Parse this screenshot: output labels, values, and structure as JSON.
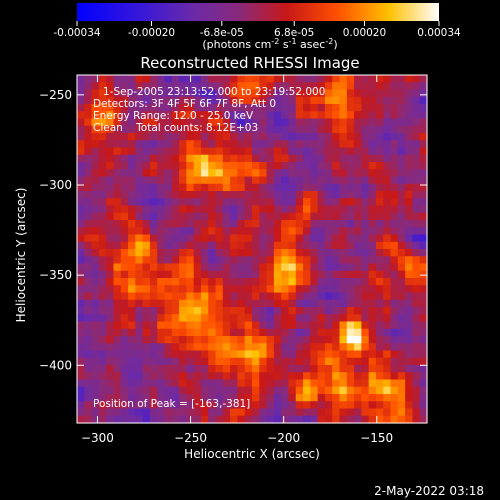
{
  "chart_data": {
    "type": "heatmap",
    "title": "Reconstructed RHESSI Image",
    "xlabel": "Heliocentric X (arcsec)",
    "ylabel": "Heliocentric Y (arcsec)",
    "xlim": [
      -311,
      -123
    ],
    "ylim": [
      -432,
      -239
    ],
    "xticks": [
      -300,
      -250,
      -200,
      -150
    ],
    "yticks": [
      -250,
      -300,
      -350,
      -400
    ],
    "colorbar": {
      "ticks": [
        -0.00034,
        -0.0002,
        -6.8e-05,
        6.8e-05,
        0.0002,
        0.00034
      ],
      "tick_labels": [
        "-0.00034",
        "-0.00020",
        "-6.8e-05",
        "6.8e-05",
        "0.00020",
        "0.00034"
      ],
      "label_parts": [
        "(photons cm",
        "-2",
        " s",
        "-1",
        " asec",
        "-2",
        ")"
      ],
      "colormap": "rhessi-blue-purple-red-yellow-white"
    },
    "annotations": [
      "1-Sep-2005 23:13:52.000 to 23:19:52.000",
      "Detectors: 3F 4F 5F 6F 7F 8F, Att 0",
      "Energy Range: 12.0 - 25.0 keV",
      "Clean    Total counts: 8.12E+03"
    ],
    "peak_label": "Position of Peak = [-163,-381]",
    "peak": [
      -163,
      -381
    ],
    "sources": [
      {
        "x": -200,
        "y": -348,
        "flux": 0.00032,
        "sigma": 10
      },
      {
        "x": -163,
        "y": -381,
        "flux": 0.00034,
        "sigma": 8
      },
      {
        "x": -240,
        "y": -290,
        "flux": 0.00022,
        "sigma": 16
      },
      {
        "x": -280,
        "y": -340,
        "flux": 0.00018,
        "sigma": 14
      },
      {
        "x": -250,
        "y": -370,
        "flux": 0.00024,
        "sigma": 14
      },
      {
        "x": -220,
        "y": -395,
        "flux": 0.00022,
        "sigma": 14
      },
      {
        "x": -180,
        "y": -410,
        "flux": 0.0002,
        "sigma": 12
      },
      {
        "x": -150,
        "y": -415,
        "flux": 0.0002,
        "sigma": 12
      },
      {
        "x": -300,
        "y": -265,
        "flux": 0.00018,
        "sigma": 10
      },
      {
        "x": -215,
        "y": -240,
        "flux": 0.00015,
        "sigma": 10
      },
      {
        "x": -170,
        "y": -250,
        "flux": 0.00016,
        "sigma": 12
      },
      {
        "x": -140,
        "y": -345,
        "flux": 0.00014,
        "sigma": 12
      },
      {
        "x": -190,
        "y": -320,
        "flux": 0.00012,
        "sigma": 10
      },
      {
        "x": -130,
        "y": -300,
        "flux": 0.00012,
        "sigma": 10
      }
    ]
  },
  "footer": {
    "timestamp": "2-May-2022 03:18"
  }
}
